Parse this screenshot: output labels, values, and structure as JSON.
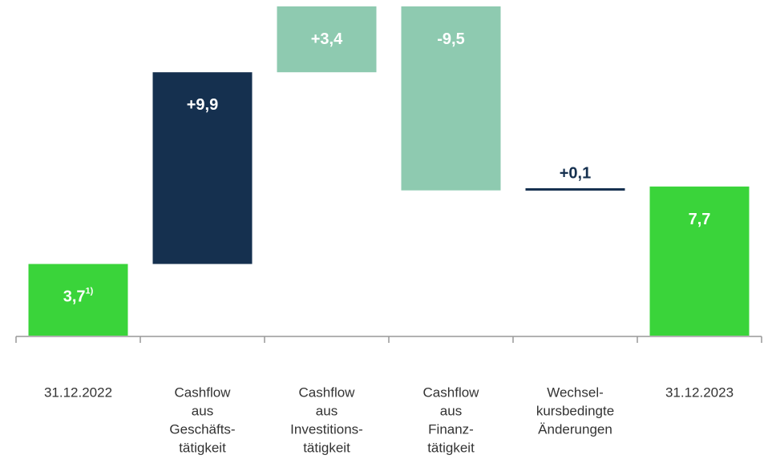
{
  "chart_data": {
    "type": "waterfall",
    "categories": [
      [
        "31.12.2022"
      ],
      [
        "Cashflow",
        "aus",
        "Geschäfts-",
        "tätigkeit"
      ],
      [
        "Cashflow",
        "aus",
        "Investitions-",
        "tätigkeit"
      ],
      [
        "Cashflow",
        "aus",
        "Finanz-",
        "tätigkeit"
      ],
      [
        "Wechsel-",
        "kursbedingte",
        "Änderungen"
      ],
      [
        "31.12.2023"
      ]
    ],
    "values": [
      3.7,
      9.9,
      3.4,
      -9.5,
      0.1,
      7.7
    ],
    "value_labels": [
      "3,7",
      "+9,9",
      "+3,4",
      "-9,5",
      "+0,1",
      "7,7"
    ],
    "value_footnotes": [
      "1)",
      null,
      null,
      null,
      null,
      null
    ],
    "totals": [
      true,
      false,
      false,
      false,
      false,
      true
    ],
    "colors": [
      "#3ad43a",
      "#15304f",
      "#8ecab0",
      "#8ecab0",
      "#15304f",
      "#3ad43a"
    ],
    "ylim": [
      0,
      17
    ]
  }
}
